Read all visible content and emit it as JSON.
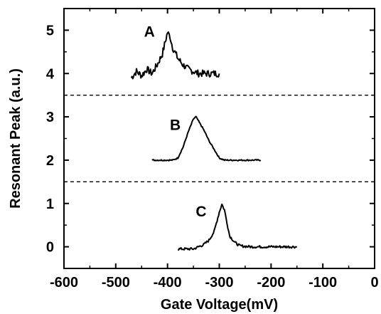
{
  "chart_data": {
    "type": "line",
    "title": "",
    "xlabel": "Gate Voltage(mV)",
    "ylabel": "Resonant Peak (a.u.)",
    "xlim": [
      -600,
      0
    ],
    "ylim": [
      -0.5,
      5.5
    ],
    "x_ticks": [
      -600,
      -500,
      -400,
      -300,
      -200,
      -100,
      0
    ],
    "x_tick_labels": [
      "-600",
      "-500",
      "-400",
      "-300",
      "-200",
      "-100",
      "0"
    ],
    "y_ticks": [
      0,
      1,
      2,
      3,
      4,
      5
    ],
    "y_tick_labels": [
      "0",
      "1",
      "2",
      "3",
      "4",
      "5"
    ],
    "grid": false,
    "separators": [
      1.5,
      3.5
    ],
    "series": [
      {
        "name": "A",
        "noise": 0.08,
        "points": [
          [
            -470,
            3.9
          ],
          [
            -460,
            4.05
          ],
          [
            -450,
            3.95
          ],
          [
            -440,
            4.1
          ],
          [
            -430,
            4.0
          ],
          [
            -420,
            4.2
          ],
          [
            -410,
            4.45
          ],
          [
            -400,
            4.95
          ],
          [
            -395,
            4.85
          ],
          [
            -390,
            4.6
          ],
          [
            -380,
            4.35
          ],
          [
            -370,
            4.2
          ],
          [
            -360,
            4.1
          ],
          [
            -350,
            4.05
          ],
          [
            -340,
            4.0
          ],
          [
            -320,
            4.0
          ],
          [
            -300,
            4.0
          ]
        ]
      },
      {
        "name": "B",
        "noise": 0.015,
        "points": [
          [
            -430,
            2.0
          ],
          [
            -390,
            2.0
          ],
          [
            -380,
            2.05
          ],
          [
            -370,
            2.3
          ],
          [
            -360,
            2.65
          ],
          [
            -350,
            2.95
          ],
          [
            -345,
            3.0
          ],
          [
            -340,
            2.9
          ],
          [
            -330,
            2.7
          ],
          [
            -320,
            2.45
          ],
          [
            -310,
            2.25
          ],
          [
            -300,
            2.05
          ],
          [
            -290,
            2.0
          ],
          [
            -220,
            2.0
          ]
        ]
      },
      {
        "name": "C",
        "noise": 0.03,
        "points": [
          [
            -380,
            -0.05
          ],
          [
            -350,
            -0.05
          ],
          [
            -340,
            0.0
          ],
          [
            -330,
            0.05
          ],
          [
            -320,
            0.15
          ],
          [
            -310,
            0.35
          ],
          [
            -300,
            0.8
          ],
          [
            -295,
            0.98
          ],
          [
            -290,
            0.85
          ],
          [
            -285,
            0.55
          ],
          [
            -280,
            0.25
          ],
          [
            -270,
            0.1
          ],
          [
            -260,
            0.02
          ],
          [
            -240,
            0.0
          ],
          [
            -150,
            0.0
          ]
        ]
      }
    ],
    "annotations": [
      {
        "text": "A",
        "x": -435,
        "y": 4.85
      },
      {
        "text": "B",
        "x": -385,
        "y": 2.7
      },
      {
        "text": "C",
        "x": -335,
        "y": 0.7
      }
    ]
  }
}
